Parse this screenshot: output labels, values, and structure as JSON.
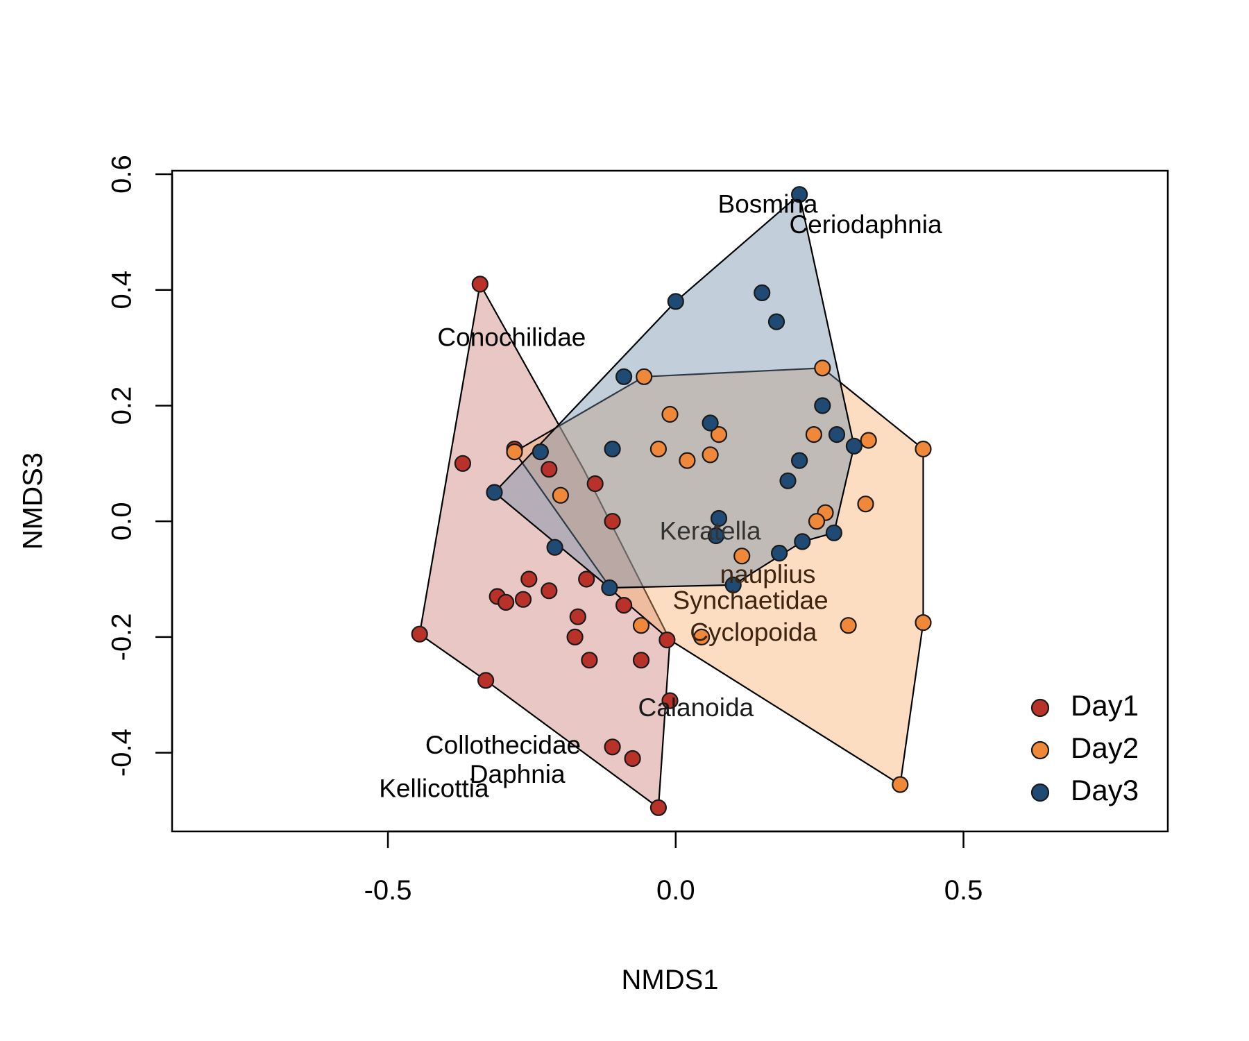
{
  "chart_data": {
    "type": "scatter",
    "title": "",
    "xlabel": "NMDS1",
    "ylabel": "NMDS3",
    "xlim": [
      -0.875,
      0.855
    ],
    "ylim": [
      -0.536,
      0.606
    ],
    "xticks": [
      -0.5,
      0.0,
      0.5
    ],
    "xtick_labels": [
      "-0.5",
      "0.0",
      "0.5"
    ],
    "yticks": [
      -0.4,
      -0.2,
      0.0,
      0.2,
      0.4,
      0.6
    ],
    "ytick_labels": [
      "-0.4",
      "-0.2",
      "0.0",
      "0.2",
      "0.4",
      "0.6"
    ],
    "grid": false,
    "legend_position": "bottom-right",
    "series": [
      {
        "name": "Day1",
        "color": "#b8322a",
        "fill": "rgba(184, 85, 75, 0.33)",
        "points": [
          [
            -0.34,
            0.41
          ],
          [
            -0.37,
            0.1
          ],
          [
            -0.28,
            0.125
          ],
          [
            -0.22,
            0.09
          ],
          [
            -0.14,
            0.065
          ],
          [
            -0.11,
            0.0
          ],
          [
            -0.255,
            -0.1
          ],
          [
            -0.31,
            -0.13
          ],
          [
            -0.295,
            -0.14
          ],
          [
            -0.265,
            -0.135
          ],
          [
            -0.22,
            -0.12
          ],
          [
            -0.155,
            -0.1
          ],
          [
            -0.17,
            -0.165
          ],
          [
            -0.09,
            -0.145
          ],
          [
            -0.175,
            -0.2
          ],
          [
            -0.15,
            -0.24
          ],
          [
            -0.06,
            -0.24
          ],
          [
            -0.445,
            -0.195
          ],
          [
            -0.33,
            -0.275
          ],
          [
            -0.01,
            -0.31
          ],
          [
            -0.015,
            -0.205
          ],
          [
            -0.11,
            -0.39
          ],
          [
            -0.075,
            -0.41
          ],
          [
            -0.03,
            -0.495
          ]
        ],
        "hull": [
          [
            -0.34,
            0.41
          ],
          [
            -0.16,
            0.09
          ],
          [
            -0.01,
            -0.205
          ],
          [
            -0.03,
            -0.495
          ],
          [
            -0.33,
            -0.275
          ],
          [
            -0.445,
            -0.195
          ]
        ]
      },
      {
        "name": "Day2",
        "color": "#f0883a",
        "fill": "rgba(248, 175, 110, 0.42)",
        "points": [
          [
            -0.055,
            0.25
          ],
          [
            -0.28,
            0.12
          ],
          [
            -0.2,
            0.045
          ],
          [
            -0.01,
            0.185
          ],
          [
            -0.03,
            0.125
          ],
          [
            0.02,
            0.105
          ],
          [
            0.06,
            0.115
          ],
          [
            0.075,
            0.15
          ],
          [
            0.115,
            -0.06
          ],
          [
            0.045,
            -0.2
          ],
          [
            -0.06,
            -0.18
          ],
          [
            0.255,
            0.265
          ],
          [
            0.24,
            0.15
          ],
          [
            0.26,
            0.015
          ],
          [
            0.245,
            0.0
          ],
          [
            0.335,
            0.14
          ],
          [
            0.33,
            0.03
          ],
          [
            0.3,
            -0.18
          ],
          [
            0.43,
            0.125
          ],
          [
            0.43,
            -0.175
          ],
          [
            0.39,
            -0.455
          ]
        ],
        "hull": [
          [
            -0.055,
            0.25
          ],
          [
            0.255,
            0.265
          ],
          [
            0.43,
            0.125
          ],
          [
            0.43,
            -0.175
          ],
          [
            0.39,
            -0.455
          ],
          [
            -0.01,
            -0.205
          ],
          [
            -0.11,
            -0.12
          ],
          [
            -0.28,
            0.12
          ]
        ]
      },
      {
        "name": "Day3",
        "color": "#1f4a73",
        "fill": "rgba(110, 140, 170, 0.42)",
        "points": [
          [
            0.215,
            0.565
          ],
          [
            0.15,
            0.395
          ],
          [
            0.175,
            0.345
          ],
          [
            0.0,
            0.38
          ],
          [
            -0.09,
            0.25
          ],
          [
            0.06,
            0.17
          ],
          [
            0.255,
            0.2
          ],
          [
            0.28,
            0.15
          ],
          [
            0.31,
            0.13
          ],
          [
            0.215,
            0.105
          ],
          [
            0.195,
            0.07
          ],
          [
            -0.11,
            0.125
          ],
          [
            -0.235,
            0.12
          ],
          [
            -0.315,
            0.05
          ],
          [
            -0.21,
            -0.045
          ],
          [
            -0.115,
            -0.115
          ],
          [
            0.075,
            0.005
          ],
          [
            0.07,
            -0.025
          ],
          [
            0.18,
            -0.055
          ],
          [
            0.22,
            -0.035
          ],
          [
            0.275,
            -0.02
          ],
          [
            0.1,
            -0.11
          ]
        ],
        "hull": [
          [
            0.215,
            0.565
          ],
          [
            0.31,
            0.13
          ],
          [
            0.275,
            -0.02
          ],
          [
            0.22,
            -0.035
          ],
          [
            0.1,
            -0.11
          ],
          [
            -0.115,
            -0.115
          ],
          [
            -0.315,
            0.05
          ],
          [
            0.0,
            0.38
          ]
        ]
      }
    ],
    "species_labels": [
      {
        "text": "Bosmina",
        "x": 0.16,
        "y": 0.545,
        "color": "#000000"
      },
      {
        "text": "Ceriodaphnia",
        "x": 0.33,
        "y": 0.51,
        "color": "#000000"
      },
      {
        "text": "Conochilidae",
        "x": -0.285,
        "y": 0.315,
        "color": "#000000"
      },
      {
        "text": "Keratella",
        "x": 0.06,
        "y": -0.02,
        "color": "#333333"
      },
      {
        "text": "nauplius",
        "x": 0.16,
        "y": -0.095,
        "color": "#3d2410"
      },
      {
        "text": "Synchaetidae",
        "x": 0.13,
        "y": -0.14,
        "color": "#3d2410"
      },
      {
        "text": "Cyclopoida",
        "x": 0.135,
        "y": -0.195,
        "color": "#3d2410"
      },
      {
        "text": "Calanoida",
        "x": 0.035,
        "y": -0.325,
        "color": "#1a1a1a"
      },
      {
        "text": "Collothecidae",
        "x": -0.3,
        "y": -0.39,
        "color": "#000000"
      },
      {
        "text": "Daphnia",
        "x": -0.275,
        "y": -0.44,
        "color": "#000000"
      },
      {
        "text": "Kellicottia",
        "x": -0.42,
        "y": -0.465,
        "color": "#000000"
      }
    ]
  }
}
